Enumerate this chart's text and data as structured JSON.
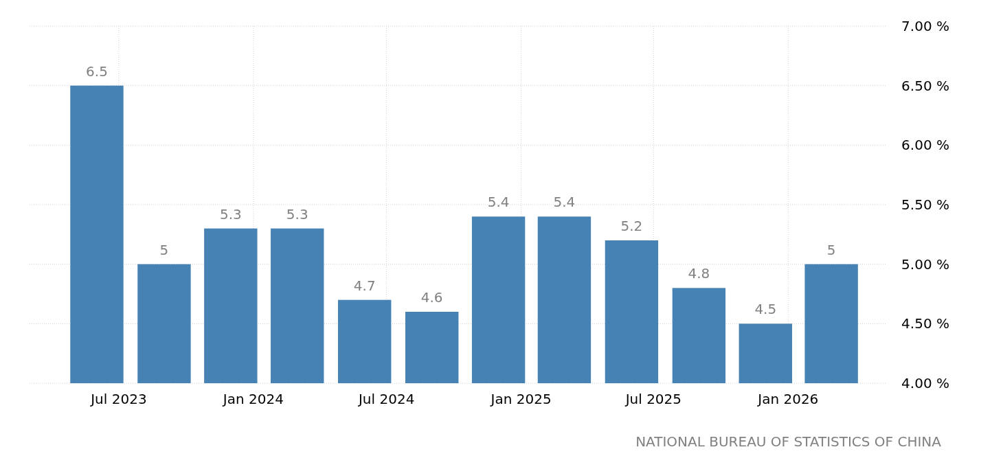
{
  "chart_data": {
    "type": "bar",
    "x": [
      "2023-06",
      "2023-09",
      "2023-12",
      "2024-03",
      "2024-06",
      "2024-09",
      "2024-12",
      "2025-03",
      "2025-06",
      "2025-09",
      "2025-12",
      "2026-03"
    ],
    "values": [
      6.5,
      5,
      5.3,
      5.3,
      4.7,
      4.6,
      5.4,
      5.4,
      5.2,
      4.8,
      4.5,
      5
    ],
    "color": "#4682b4",
    "xlim": [
      "2023-03-01",
      "2026-05-15"
    ],
    "xticks": [
      {
        "value": "2023-07-01",
        "label": "Jul 2023"
      },
      {
        "value": "2024-01-01",
        "label": "Jan 2024"
      },
      {
        "value": "2024-07-01",
        "label": "Jul 2024"
      },
      {
        "value": "2025-01-01",
        "label": "Jan 2025"
      },
      {
        "value": "2025-07-01",
        "label": "Jul 2025"
      },
      {
        "value": "2026-01-01",
        "label": "Jan 2026"
      }
    ],
    "ylim": [
      4,
      7
    ],
    "yticks": [
      {
        "value": 4,
        "label": "4.00 %"
      },
      {
        "value": 4.5,
        "label": "4.50 %"
      },
      {
        "value": 5,
        "label": "5.00 %"
      },
      {
        "value": 5.5,
        "label": "5.50 %"
      },
      {
        "value": 6,
        "label": "6.00 %"
      },
      {
        "value": 6.5,
        "label": "6.50 %"
      },
      {
        "value": 7,
        "label": "7.00 %"
      }
    ],
    "grid": true,
    "data_labels": true,
    "annotations": [
      "NATIONAL BUREAU OF STATISTICS OF CHINA"
    ]
  }
}
